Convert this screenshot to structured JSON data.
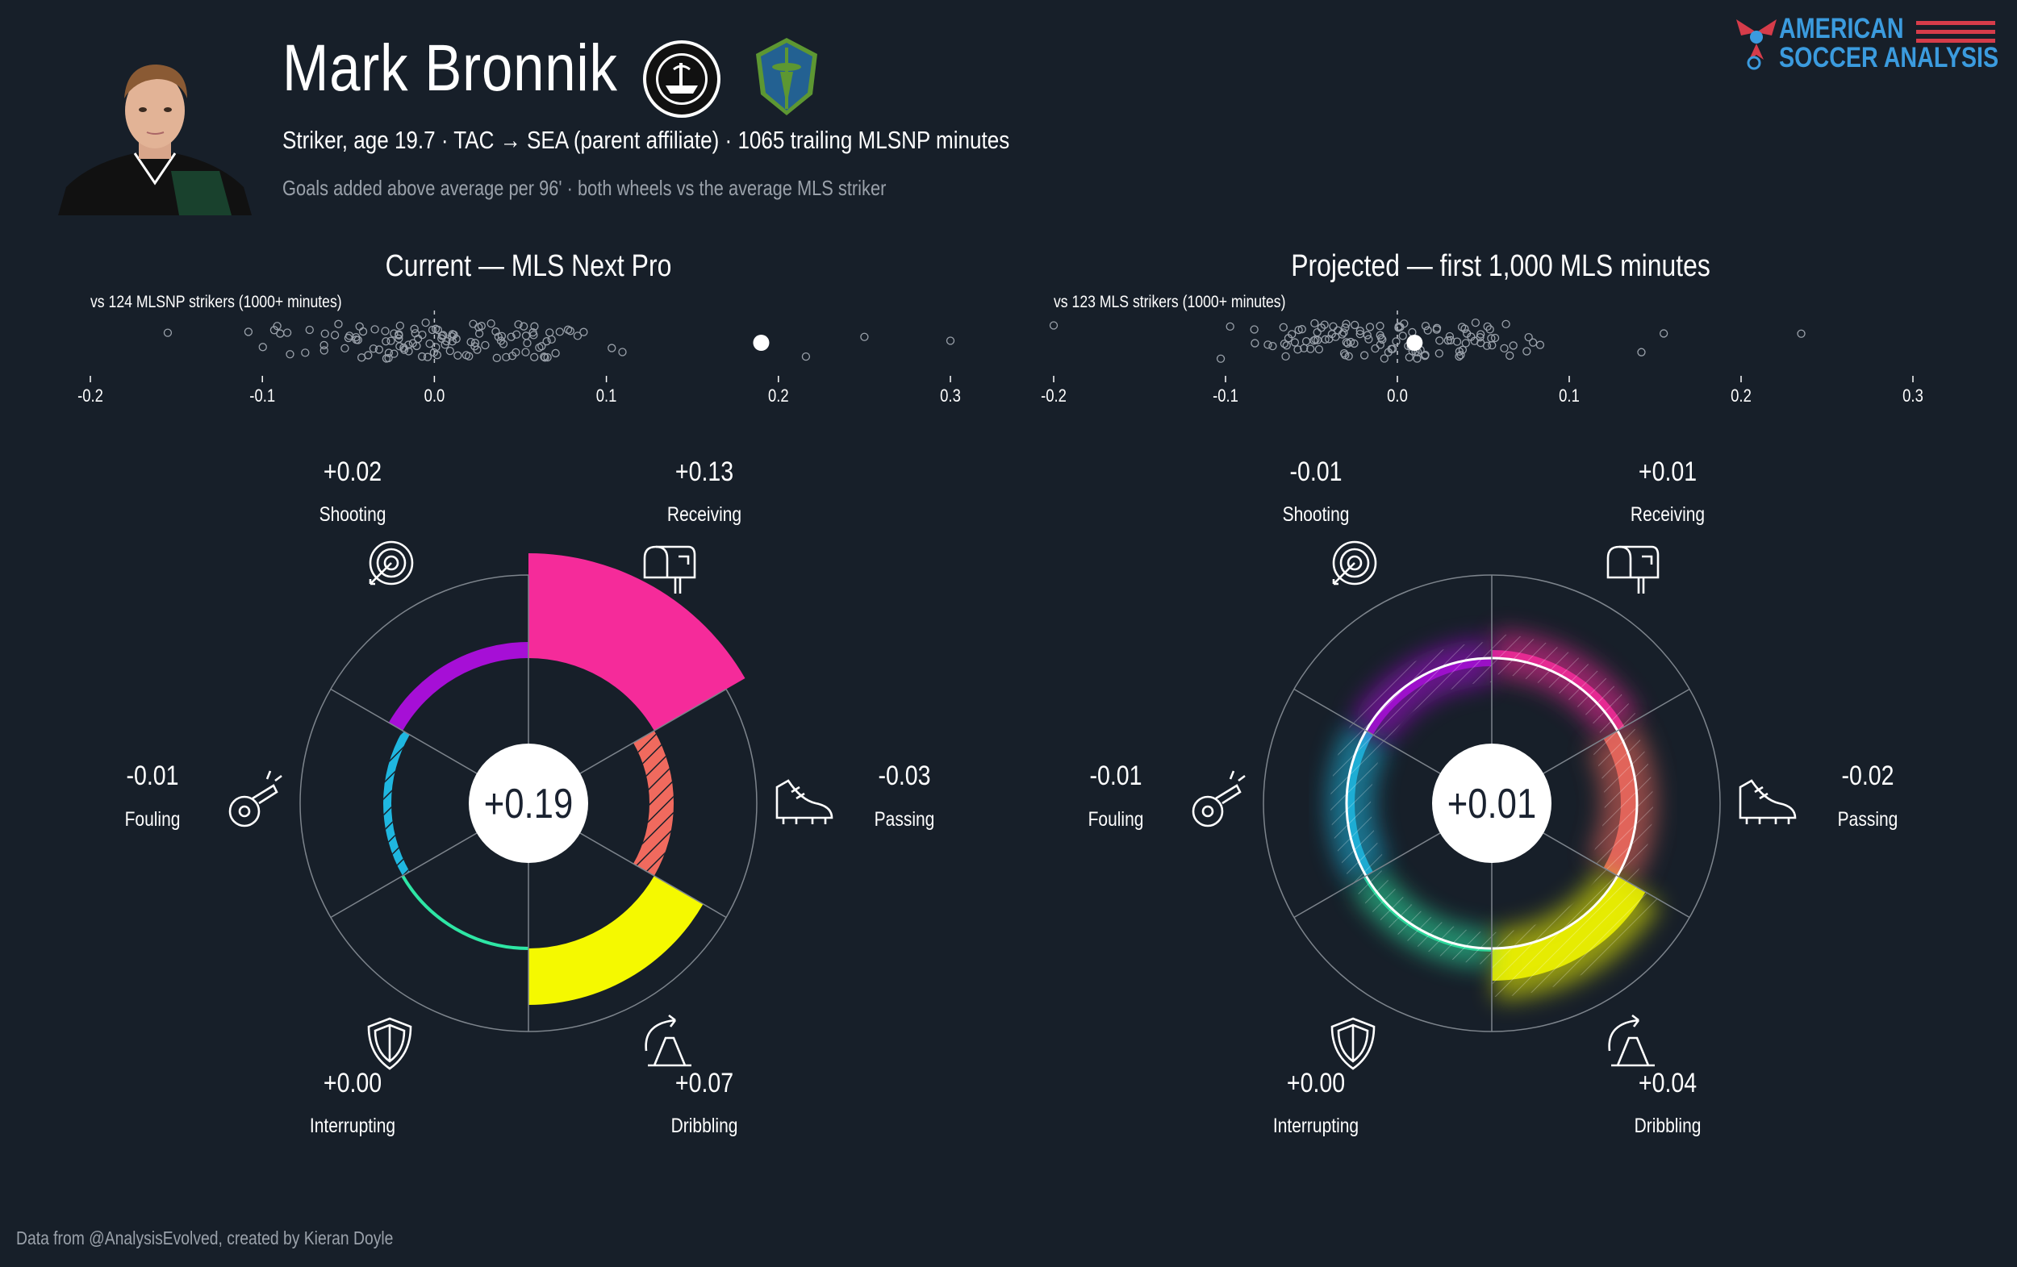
{
  "header": {
    "name": "Mark Bronnik",
    "subtitle": "Striker, age 19.7 · TAC → SEA (parent affiliate) · 1065 trailing MLSNP minutes",
    "caption": "Goals added above average per 96' · both wheels vs the average MLS striker"
  },
  "brand": {
    "line1": "AMERICAN",
    "line2": "SOCCER ANALYSIS"
  },
  "footer": "Data from @AnalysisEvolved, created by Kieran Doyle",
  "colors": {
    "background": "#171f29",
    "Shooting": "#a60fd6",
    "Receiving": "#f52b9a",
    "Passing": "#f06a5e",
    "Dribbling": "#f5f900",
    "Interrupting": "#2ee6a5",
    "Fouling": "#1fb7e0",
    "center": "#ffffff"
  },
  "icons": {
    "Shooting": "target-icon",
    "Receiving": "mailbox-icon",
    "Passing": "cleat-icon",
    "Dribbling": "cone-icon",
    "Interrupting": "shield-icon",
    "Fouling": "whistle-icon"
  },
  "chart_data": [
    {
      "type": "strip",
      "title": "Current — MLS Next Pro",
      "label": "vs 124 MLSNP strikers (1000+ minutes)",
      "xlim": [
        -0.2,
        0.3
      ],
      "ticks": [
        "-0.2",
        "-0.1",
        "0.0",
        "0.1",
        "0.2",
        "0.3"
      ],
      "highlight": 0.19,
      "reference_line": 0.0
    },
    {
      "type": "strip",
      "title": "Projected — first 1,000 MLS minutes",
      "label": "vs 123 MLS strikers (1000+ minutes)",
      "xlim": [
        -0.2,
        0.3
      ],
      "ticks": [
        "-0.2",
        "-0.1",
        "0.0",
        "0.1",
        "0.2",
        "0.3"
      ],
      "highlight": 0.01,
      "reference_line": 0.0
    },
    {
      "type": "radial",
      "name": "current",
      "total": "+0.19",
      "categories": [
        "Receiving",
        "Passing",
        "Dribbling",
        "Interrupting",
        "Fouling",
        "Shooting"
      ],
      "values": [
        0.13,
        -0.03,
        0.07,
        0.0,
        -0.01,
        0.02
      ],
      "labels": [
        "+0.13",
        "-0.03",
        "+0.07",
        "+0.00",
        "-0.01",
        "+0.02"
      ]
    },
    {
      "type": "radial",
      "name": "projected",
      "total": "+0.01",
      "categories": [
        "Receiving",
        "Passing",
        "Dribbling",
        "Interrupting",
        "Fouling",
        "Shooting"
      ],
      "values": [
        0.01,
        -0.02,
        0.04,
        0.0,
        -0.01,
        -0.01
      ],
      "labels": [
        "+0.01",
        "-0.02",
        "+0.04",
        "+0.00",
        "-0.01",
        "-0.01"
      ]
    }
  ]
}
